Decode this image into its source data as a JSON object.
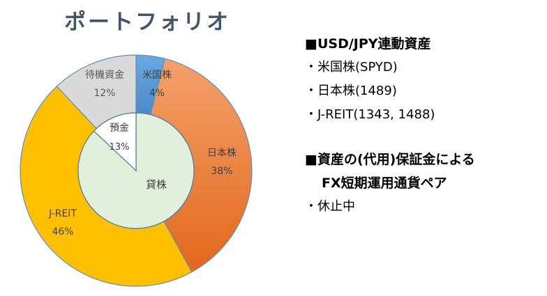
{
  "title": "ポートフォリオ",
  "chart_data": {
    "type": "donut",
    "outer_series": [
      {
        "label": "米国株",
        "value_label": "4%",
        "value": 4,
        "color": "#5b9bd5"
      },
      {
        "label": "日本株",
        "value_label": "38%",
        "value": 38,
        "color": "#ed7d31"
      },
      {
        "label": "J-REIT",
        "value_label": "46%",
        "value": 46,
        "color": "#ffc000"
      },
      {
        "label": "待機資金",
        "value_label": "12%",
        "value": 12,
        "color": "#d9d9d9"
      }
    ],
    "inner_series": [
      {
        "label": "貸株",
        "value_label": "",
        "value": 87,
        "color": "#e2efda"
      },
      {
        "label": "預金",
        "value_label": "13%",
        "value": 13,
        "color": "#ffffff"
      }
    ]
  },
  "right_panel": {
    "section1": {
      "heading": "■USD/JPY連動資産",
      "items": [
        "・米国株(SPYD)",
        "・日本株(1489)",
        "・J-REIT(1343, 1488)"
      ]
    },
    "section2": {
      "heading_line1": "■資産の(代用)保証金による",
      "heading_line2": "FX短期運用通貨ペア",
      "items": [
        "・休止中"
      ]
    }
  }
}
